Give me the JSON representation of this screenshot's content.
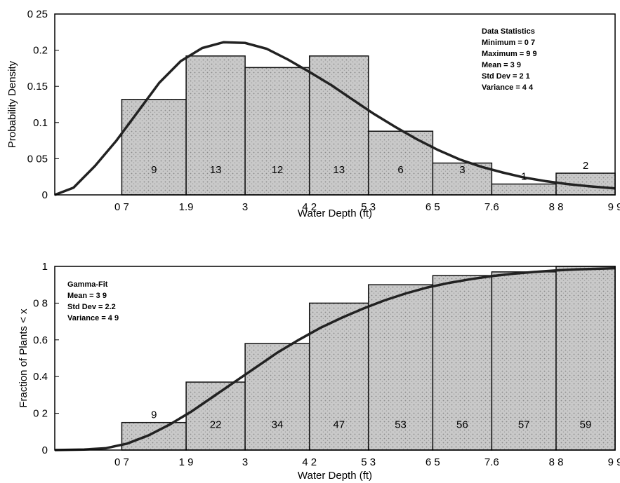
{
  "chart_data": [
    {
      "type": "bar",
      "xlabel": "Water Depth (ft)",
      "ylabel": "Probability Density",
      "xticks": [
        "0 7",
        "1.9",
        "3",
        "4 2",
        "5 3",
        "6 5",
        "7.6",
        "8 8",
        "9 9"
      ],
      "bin_edges": [
        0.7,
        1.9,
        3,
        4.2,
        5.3,
        6.5,
        7.6,
        8.8,
        9.9
      ],
      "xlim": [
        -0.55,
        9.9
      ],
      "yticks": [
        "0",
        "0 05",
        "0.1",
        "0.15",
        "0.2",
        "0 25"
      ],
      "ytick_values": [
        0,
        0.05,
        0.1,
        0.15,
        0.2,
        0.25
      ],
      "ylim": [
        0,
        0.25
      ],
      "values": [
        0.132,
        0.192,
        0.176,
        0.192,
        0.088,
        0.044,
        0.015,
        0.03
      ],
      "counts": [
        "9",
        "13",
        "12",
        "13",
        "6",
        "3",
        "1",
        "2"
      ],
      "curve": [
        [
          -0.55,
          0.0
        ],
        [
          -0.2,
          0.01
        ],
        [
          0.2,
          0.04
        ],
        [
          0.6,
          0.075
        ],
        [
          1.0,
          0.115
        ],
        [
          1.4,
          0.155
        ],
        [
          1.8,
          0.185
        ],
        [
          2.2,
          0.203
        ],
        [
          2.6,
          0.211
        ],
        [
          3.0,
          0.21
        ],
        [
          3.4,
          0.202
        ],
        [
          3.8,
          0.187
        ],
        [
          4.2,
          0.17
        ],
        [
          4.6,
          0.152
        ],
        [
          5.0,
          0.132
        ],
        [
          5.4,
          0.112
        ],
        [
          5.8,
          0.094
        ],
        [
          6.2,
          0.077
        ],
        [
          6.6,
          0.062
        ],
        [
          7.0,
          0.049
        ],
        [
          7.4,
          0.039
        ],
        [
          7.8,
          0.031
        ],
        [
          8.2,
          0.024
        ],
        [
          8.6,
          0.019
        ],
        [
          9.0,
          0.015
        ],
        [
          9.4,
          0.012
        ],
        [
          9.9,
          0.009
        ]
      ],
      "legend_position": "top-right",
      "annotation": {
        "title": "Data Statistics",
        "lines": [
          "Minimum   = 0 7",
          "Maximum  = 9 9",
          "Mean        = 3 9",
          "Std Dev    = 2 1",
          "Variance  = 4 4"
        ]
      }
    },
    {
      "type": "bar",
      "xlabel": "Water Depth (ft)",
      "ylabel": "Fraction of Plants < x",
      "xticks": [
        "0 7",
        "1 9",
        "3",
        "4 2",
        "5 3",
        "6 5",
        "7.6",
        "8 8",
        "9 9"
      ],
      "bin_edges": [
        0.7,
        1.9,
        3,
        4.2,
        5.3,
        6.5,
        7.6,
        8.8,
        9.9
      ],
      "xlim": [
        -0.55,
        9.9
      ],
      "yticks": [
        "0",
        "0 2",
        "0.4",
        "0.6",
        "0 8",
        "1"
      ],
      "ytick_values": [
        0,
        0.2,
        0.4,
        0.6,
        0.8,
        1.0
      ],
      "ylim": [
        0,
        1
      ],
      "values": [
        0.15,
        0.37,
        0.58,
        0.8,
        0.9,
        0.95,
        0.97,
        1.0
      ],
      "counts": [
        "9",
        "22",
        "34",
        "47",
        "53",
        "56",
        "57",
        "59"
      ],
      "curve": [
        [
          -0.55,
          0.0
        ],
        [
          0.0,
          0.003
        ],
        [
          0.4,
          0.01
        ],
        [
          0.8,
          0.035
        ],
        [
          1.2,
          0.08
        ],
        [
          1.6,
          0.14
        ],
        [
          2.0,
          0.21
        ],
        [
          2.4,
          0.29
        ],
        [
          2.8,
          0.37
        ],
        [
          3.2,
          0.45
        ],
        [
          3.6,
          0.53
        ],
        [
          4.0,
          0.6
        ],
        [
          4.4,
          0.665
        ],
        [
          4.8,
          0.72
        ],
        [
          5.2,
          0.77
        ],
        [
          5.6,
          0.815
        ],
        [
          6.0,
          0.853
        ],
        [
          6.4,
          0.885
        ],
        [
          6.8,
          0.91
        ],
        [
          7.2,
          0.93
        ],
        [
          7.6,
          0.947
        ],
        [
          8.0,
          0.96
        ],
        [
          8.4,
          0.97
        ],
        [
          8.8,
          0.978
        ],
        [
          9.2,
          0.984
        ],
        [
          9.9,
          0.99
        ]
      ],
      "legend_position": "top-left",
      "annotation": {
        "title": "Gamma-Fit",
        "lines": [
          "Mean        = 3 9",
          "Std Dev   = 2.2",
          "Variance  = 4 9"
        ]
      }
    }
  ]
}
